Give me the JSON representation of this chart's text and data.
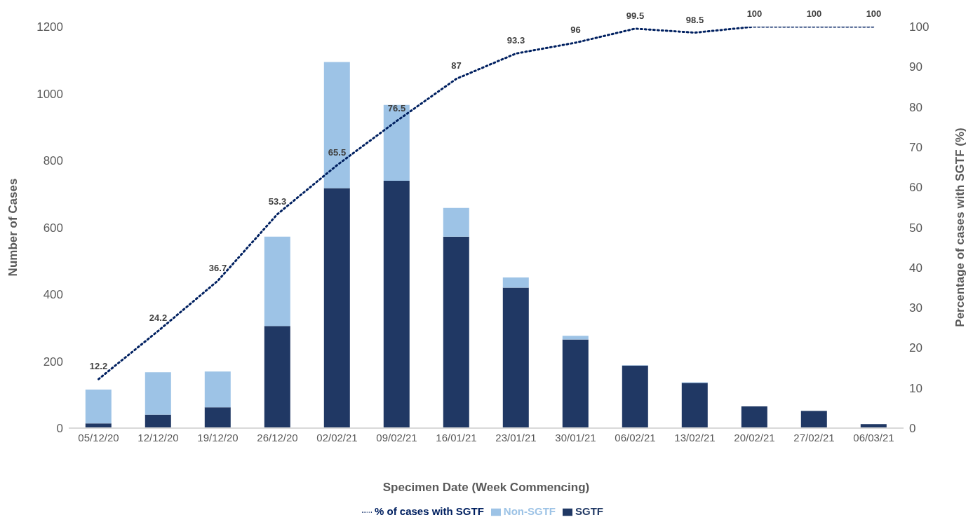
{
  "chart_data": {
    "type": "bar",
    "stacked": true,
    "xlabel": "Specimen Date (Week Commencing)",
    "ylabel": "Number of Cases",
    "y2label": "Percentage of cases with SGTF (%)",
    "categories": [
      "05/12/20",
      "12/12/20",
      "19/12/20",
      "26/12/20",
      "02/02/21",
      "09/02/21",
      "16/01/21",
      "23/01/21",
      "30/01/21",
      "06/02/21",
      "13/02/21",
      "20/02/21",
      "27/02/21",
      "06/03/21"
    ],
    "series": [
      {
        "name": "SGTF",
        "color": "#203864",
        "values": [
          14,
          40,
          62,
          305,
          717,
          739,
          572,
          420,
          265,
          187,
          135,
          65,
          51,
          12
        ]
      },
      {
        "name": "Non-SGTF",
        "color": "#9dc3e6",
        "values": [
          101,
          127,
          107,
          267,
          377,
          227,
          86,
          30,
          11,
          1,
          2,
          0,
          0,
          0
        ]
      },
      {
        "name": "% of cases with SGTF",
        "type": "line",
        "axis": "y2",
        "color": "#002060",
        "line_style": "dotted",
        "marker": "none",
        "data_labels": true,
        "values": [
          12.2,
          24.2,
          36.7,
          53.3,
          65.5,
          76.5,
          87,
          93.3,
          96,
          99.5,
          98.5,
          100,
          100,
          100
        ]
      }
    ],
    "ylim": [
      0,
      1200
    ],
    "yticks": [
      0,
      200,
      400,
      600,
      800,
      1000,
      1200
    ],
    "y2lim": [
      0,
      100
    ],
    "y2ticks": [
      0,
      10,
      20,
      30,
      40,
      50,
      60,
      70,
      80,
      90,
      100
    ],
    "grid": false,
    "legend": "bottom"
  }
}
